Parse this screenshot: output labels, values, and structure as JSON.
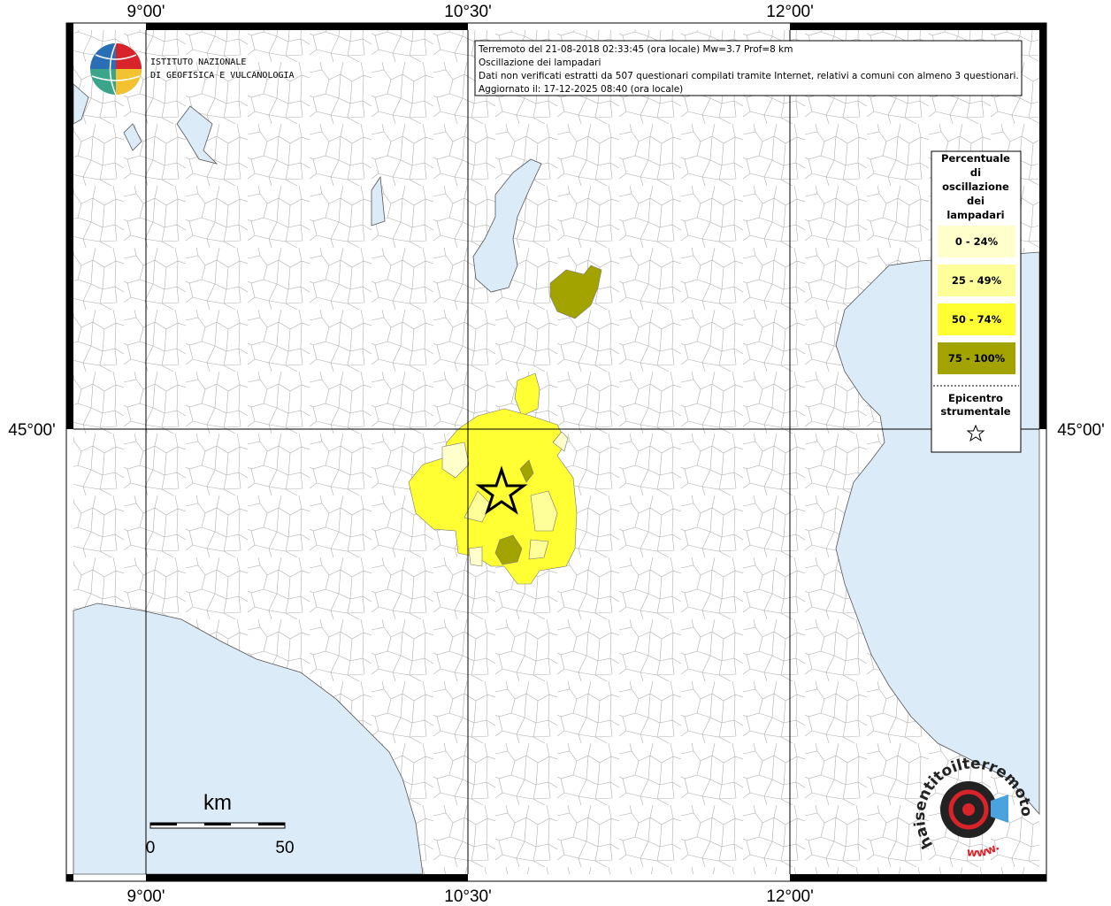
{
  "title_box": {
    "lines": [
      "Terremoto del 21-08-2018 02:33:45 (ora locale) Mw=3.7 Prof=8 km",
      "Oscillazione dei lampadari",
      "Dati non verificati estratti da 507 questionari compilati tramite Internet, relativi a comuni con almeno 3 questionari.",
      "Aggiornato il: 17-12-2025 08:40 (ora locale)"
    ]
  },
  "logo": {
    "lines": [
      "ISTITUTO NAZIONALE",
      "DI GEOFISICA E VULCANOLOGIA"
    ]
  },
  "axes": {
    "lon_labels": [
      "9°00'",
      "10°30'",
      "12°00'"
    ],
    "lat_labels": [
      "45°00'"
    ]
  },
  "legend": {
    "title": [
      "Percentuale",
      "di",
      "oscillazione",
      "dei",
      "lampadari"
    ],
    "classes": [
      {
        "label": "0 - 24%",
        "color": "#ffffcc"
      },
      {
        "label": "25 - 49%",
        "color": "#ffff99"
      },
      {
        "label": "50 - 74%",
        "color": "#ffff33"
      },
      {
        "label": "75 - 100%",
        "color": "#a3a300"
      }
    ],
    "epicenter": [
      "Epicentro",
      "strumentale"
    ]
  },
  "scale_bar": {
    "unit": "km",
    "labels": [
      "0",
      "50"
    ]
  },
  "watermark": {
    "site": "haisentitoilterremoto.it",
    "prefix": "www."
  }
}
